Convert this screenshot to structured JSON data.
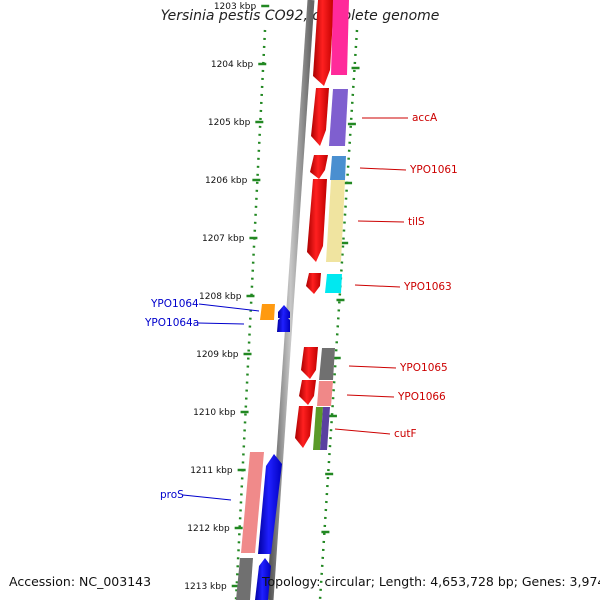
{
  "title": "Yersinia pestis CO92, complete genome",
  "footer": {
    "accession": "Accession: NC_003143",
    "topology": "Topology: circular; Length: 4,653,728 bp; Genes: 3,974"
  },
  "ruler": {
    "ticks": [
      "1203 kbp",
      "1204 kbp",
      "1205 kbp",
      "1206 kbp",
      "1207 kbp",
      "1208 kbp",
      "1209 kbp",
      "1210 kbp",
      "1211 kbp",
      "1212 kbp",
      "1213 kbp"
    ]
  },
  "gene_labels": {
    "right": [
      "accA",
      "YPO1061",
      "tilS",
      "YPO1063",
      "YPO1065",
      "YPO1066",
      "cutF"
    ],
    "left": [
      "YPO1064",
      "YPO1064a",
      "proS"
    ]
  },
  "colors": {
    "label_right": "#cc0000",
    "label_left": "#0000cc",
    "tick": "#228822",
    "backbone": "#777777",
    "forward_gene": "#ee0000",
    "reverse_gene": "#0000ee"
  }
}
